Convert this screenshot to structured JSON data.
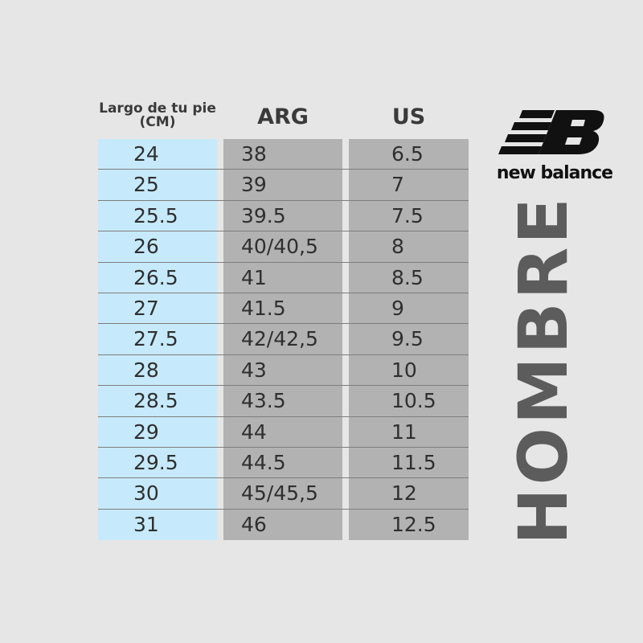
{
  "headers": {
    "cm": "Largo de tu pie (CM)",
    "arg": "ARG",
    "us": "US"
  },
  "rows": [
    {
      "cm": "24",
      "arg": "38",
      "us": "6.5"
    },
    {
      "cm": "25",
      "arg": "39",
      "us": "7"
    },
    {
      "cm": "25.5",
      "arg": "39.5",
      "us": "7.5"
    },
    {
      "cm": "26",
      "arg": "40/40,5",
      "us": "8"
    },
    {
      "cm": "26.5",
      "arg": "41",
      "us": "8.5"
    },
    {
      "cm": "27",
      "arg": "41.5",
      "us": "9"
    },
    {
      "cm": "27.5",
      "arg": "42/42,5",
      "us": "9.5"
    },
    {
      "cm": "28",
      "arg": "43",
      "us": "10"
    },
    {
      "cm": "28.5",
      "arg": "43.5",
      "us": "10.5"
    },
    {
      "cm": "29",
      "arg": "44",
      "us": "11"
    },
    {
      "cm": "29.5",
      "arg": "44.5",
      "us": "11.5"
    },
    {
      "cm": "30",
      "arg": "45/45,5",
      "us": "12"
    },
    {
      "cm": "31",
      "arg": "46",
      "us": "12.5"
    }
  ],
  "brand": {
    "name": "new balance",
    "logo_icon": "nb-logo-icon"
  },
  "side_label": "HOMBRE",
  "colors": {
    "cm_column": "#c6eafb",
    "size_columns": "#b2b2b2",
    "background": "#e6e6e6",
    "side_label": "#5c5c5c"
  }
}
